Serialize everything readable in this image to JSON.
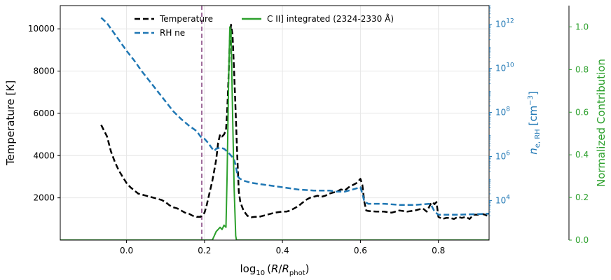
{
  "chart_data": {
    "type": "line",
    "xlabel": "log10 (R/R_phot)",
    "xlim": [
      -0.17,
      0.93
    ],
    "x_ticks": [
      0.0,
      0.2,
      0.4,
      0.6,
      0.8
    ],
    "y_left": {
      "label": "Temperature [K]",
      "lim": [
        0,
        11100
      ],
      "ticks": [
        2000,
        4000,
        6000,
        8000,
        10000
      ]
    },
    "y_right1": {
      "label": "n_e,RH [cm^-3]",
      "scale": "log",
      "lim_log10": [
        2.2,
        12.85
      ],
      "ticks_log10": [
        4,
        6,
        8,
        10,
        12
      ],
      "color": "#1f77b4"
    },
    "y_right2": {
      "label": "Normalized Contribution",
      "lim": [
        0,
        1.1
      ],
      "ticks": [
        0.0,
        0.2,
        0.4,
        0.6,
        0.8,
        1.0
      ],
      "color": "#2ca02c"
    },
    "vline": {
      "x": 0.193,
      "color": "#9e6a9a",
      "style": "dashed"
    },
    "legend_position": "top",
    "grid": true,
    "series": [
      {
        "name": "Temperature",
        "axis": "left",
        "color": "#000000",
        "style": "dashed",
        "x": [
          -0.065,
          -0.05,
          -0.04,
          -0.03,
          -0.02,
          -0.01,
          0.0,
          0.01,
          0.02,
          0.03,
          0.04,
          0.05,
          0.06,
          0.07,
          0.08,
          0.09,
          0.1,
          0.11,
          0.12,
          0.13,
          0.14,
          0.15,
          0.16,
          0.17,
          0.18,
          0.19,
          0.2,
          0.205,
          0.21,
          0.215,
          0.22,
          0.225,
          0.23,
          0.235,
          0.24,
          0.245,
          0.25,
          0.255,
          0.258,
          0.262,
          0.265,
          0.268,
          0.272,
          0.276,
          0.28,
          0.284,
          0.288,
          0.292,
          0.3,
          0.31,
          0.32,
          0.33,
          0.34,
          0.36,
          0.38,
          0.4,
          0.41,
          0.42,
          0.43,
          0.44,
          0.45,
          0.46,
          0.47,
          0.48,
          0.49,
          0.5,
          0.51,
          0.52,
          0.53,
          0.54,
          0.55,
          0.56,
          0.57,
          0.58,
          0.59,
          0.6,
          0.605,
          0.61,
          0.615,
          0.62,
          0.64,
          0.66,
          0.68,
          0.7,
          0.72,
          0.74,
          0.76,
          0.77,
          0.78,
          0.785,
          0.79,
          0.795,
          0.8,
          0.81,
          0.82,
          0.83,
          0.84,
          0.85,
          0.86,
          0.87,
          0.88,
          0.89,
          0.9,
          0.91,
          0.92,
          0.93
        ],
        "y": [
          5450,
          4900,
          4200,
          3700,
          3300,
          3000,
          2700,
          2500,
          2350,
          2200,
          2150,
          2100,
          2050,
          2000,
          1950,
          1900,
          1800,
          1650,
          1550,
          1500,
          1400,
          1300,
          1250,
          1150,
          1100,
          1100,
          1300,
          1600,
          2000,
          2400,
          2800,
          3300,
          3800,
          4600,
          5000,
          4900,
          5000,
          5200,
          6000,
          7800,
          9500,
          10200,
          9700,
          8000,
          6000,
          4000,
          2300,
          1800,
          1400,
          1150,
          1080,
          1100,
          1100,
          1200,
          1300,
          1350,
          1350,
          1400,
          1500,
          1600,
          1750,
          1900,
          2000,
          2050,
          2100,
          2050,
          2100,
          2200,
          2250,
          2300,
          2400,
          2350,
          2500,
          2600,
          2700,
          2900,
          2600,
          1800,
          1400,
          1380,
          1350,
          1350,
          1300,
          1400,
          1350,
          1400,
          1500,
          1350,
          1700,
          1800,
          1700,
          1800,
          1100,
          1000,
          1050,
          1050,
          1000,
          1100,
          1050,
          1100,
          1000,
          1200,
          1200,
          1250,
          1200,
          1100
        ]
      },
      {
        "name": "RH ne",
        "axis": "right1",
        "color": "#1f77b4",
        "style": "dashed",
        "x": [
          -0.065,
          -0.05,
          -0.04,
          -0.03,
          -0.02,
          -0.01,
          0.0,
          0.02,
          0.04,
          0.06,
          0.08,
          0.1,
          0.12,
          0.14,
          0.16,
          0.18,
          0.19,
          0.2,
          0.21,
          0.22,
          0.225,
          0.23,
          0.24,
          0.25,
          0.26,
          0.265,
          0.27,
          0.275,
          0.28,
          0.285,
          0.29,
          0.3,
          0.32,
          0.36,
          0.4,
          0.44,
          0.48,
          0.52,
          0.54,
          0.56,
          0.58,
          0.6,
          0.605,
          0.61,
          0.615,
          0.62,
          0.66,
          0.7,
          0.74,
          0.78,
          0.79,
          0.8,
          0.85,
          0.9,
          0.93
        ],
        "y": [
          12.3,
          12.05,
          11.8,
          11.55,
          11.3,
          11.05,
          10.8,
          10.35,
          9.85,
          9.4,
          8.95,
          8.5,
          8.05,
          7.7,
          7.4,
          7.15,
          6.9,
          6.8,
          6.6,
          6.35,
          6.25,
          6.35,
          6.4,
          6.35,
          6.2,
          6.1,
          6.0,
          5.9,
          5.6,
          5.1,
          5.0,
          4.9,
          4.8,
          4.7,
          4.6,
          4.5,
          4.45,
          4.45,
          4.4,
          4.4,
          4.5,
          4.6,
          4.3,
          3.95,
          3.9,
          3.85,
          3.85,
          3.8,
          3.8,
          3.85,
          3.5,
          3.35,
          3.35,
          3.38,
          3.4
        ]
      },
      {
        "name": "C II] integrated (2324-2330 Å)",
        "axis": "right2",
        "color": "#2ca02c",
        "style": "solid",
        "x": [
          -0.17,
          0.22,
          0.225,
          0.23,
          0.235,
          0.24,
          0.245,
          0.25,
          0.255,
          0.258,
          0.262,
          0.265,
          0.268,
          0.272,
          0.276,
          0.28,
          0.282,
          0.29,
          0.93
        ],
        "y": [
          0,
          0,
          0.02,
          0.04,
          0.05,
          0.06,
          0.05,
          0.07,
          0.06,
          0.3,
          0.75,
          1.0,
          0.98,
          0.6,
          0.25,
          0.02,
          0,
          0,
          0
        ]
      }
    ]
  }
}
